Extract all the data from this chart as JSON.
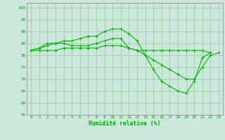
{
  "xlabel": "Humidité relative (%)",
  "x": [
    0,
    1,
    2,
    3,
    4,
    5,
    6,
    7,
    8,
    9,
    10,
    11,
    12,
    13,
    14,
    15,
    16,
    17,
    18,
    19,
    20,
    21,
    22,
    23
  ],
  "line1": [
    82,
    83,
    84,
    85,
    86,
    86,
    87,
    88,
    88,
    90,
    91,
    91,
    89,
    86,
    80,
    74,
    69,
    67,
    65,
    64,
    69,
    79,
    81,
    null
  ],
  "line2": [
    82,
    83,
    85,
    85,
    85,
    84,
    84,
    84,
    85,
    86,
    87,
    87,
    83,
    82,
    82,
    82,
    82,
    82,
    82,
    82,
    82,
    82,
    81,
    null
  ],
  "line3": [
    82,
    82,
    82,
    82,
    83,
    83,
    83,
    83,
    83,
    84,
    84,
    84,
    83,
    82,
    80,
    78,
    76,
    74,
    72,
    70,
    70,
    75,
    80,
    81
  ],
  "line_color": "#00bb00",
  "bg_color": "#cce8dd",
  "grid_color": "#99cc99",
  "text_color": "#00aa00",
  "ylim": [
    55,
    102
  ],
  "xlim": [
    -0.5,
    23.5
  ],
  "yticks": [
    55,
    60,
    65,
    70,
    75,
    80,
    85,
    90,
    95,
    100
  ],
  "xticks": [
    0,
    1,
    2,
    3,
    4,
    5,
    6,
    7,
    8,
    9,
    10,
    11,
    12,
    13,
    14,
    15,
    16,
    17,
    18,
    19,
    20,
    21,
    22,
    23
  ]
}
